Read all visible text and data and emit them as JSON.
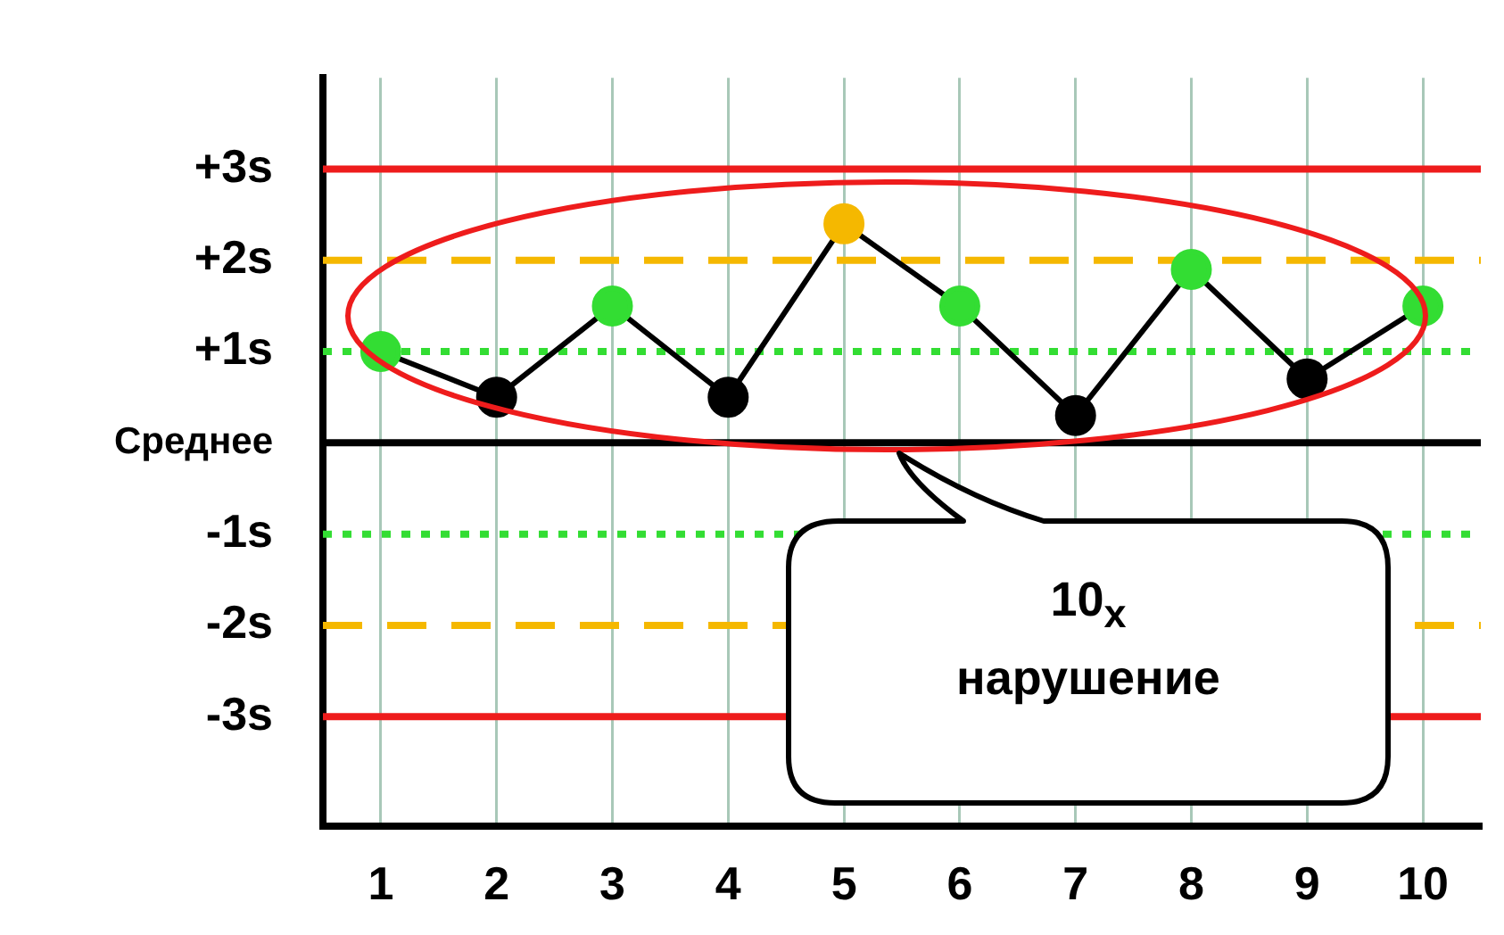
{
  "chart_data": {
    "type": "line",
    "categories": [
      "1",
      "2",
      "3",
      "4",
      "5",
      "6",
      "7",
      "8",
      "9",
      "10"
    ],
    "series": [
      {
        "color": "#000000",
        "colors": [
          "#33dd33",
          "#000000",
          "#33dd33",
          "#000000",
          "#f5b800",
          "#33dd33",
          "#000000",
          "#33dd33",
          "#000000",
          "#33dd33"
        ],
        "values": [
          1.0,
          0.5,
          1.5,
          0.5,
          2.4,
          1.5,
          0.3,
          1.9,
          0.7,
          1.5
        ]
      }
    ],
    "ylim": [
      -4.2,
      4.0
    ],
    "yticks": [
      {
        "value": -3,
        "label": "-3s"
      },
      {
        "value": -2,
        "label": "-2s"
      },
      {
        "value": -1,
        "label": "-1s"
      },
      {
        "value": 0,
        "label": "Среднее"
      },
      {
        "value": 1,
        "label": "+1s"
      },
      {
        "value": 2,
        "label": "+2s"
      },
      {
        "value": 3,
        "label": "+3s"
      }
    ],
    "grid": "x",
    "marker": "circle",
    "line_style": "solid",
    "ref_lines": [
      {
        "axis": "y",
        "value": 3,
        "color": "#ee1c1c",
        "line_style": "solid"
      },
      {
        "axis": "y",
        "value": 2,
        "color": "#f5b800",
        "line_style": "dashed"
      },
      {
        "axis": "y",
        "value": 1,
        "color": "#33dd33",
        "line_style": "dotted"
      },
      {
        "axis": "y",
        "value": 0,
        "color": "#000000",
        "line_style": "solid"
      },
      {
        "axis": "y",
        "value": -1,
        "color": "#33dd33",
        "line_style": "dotted"
      },
      {
        "axis": "y",
        "value": -2,
        "color": "#f5b800",
        "line_style": "dashed"
      },
      {
        "axis": "y",
        "value": -3,
        "color": "#ee1c1c",
        "line_style": "solid"
      }
    ],
    "annotations": [
      "10$_{x}$ нарушение"
    ]
  }
}
